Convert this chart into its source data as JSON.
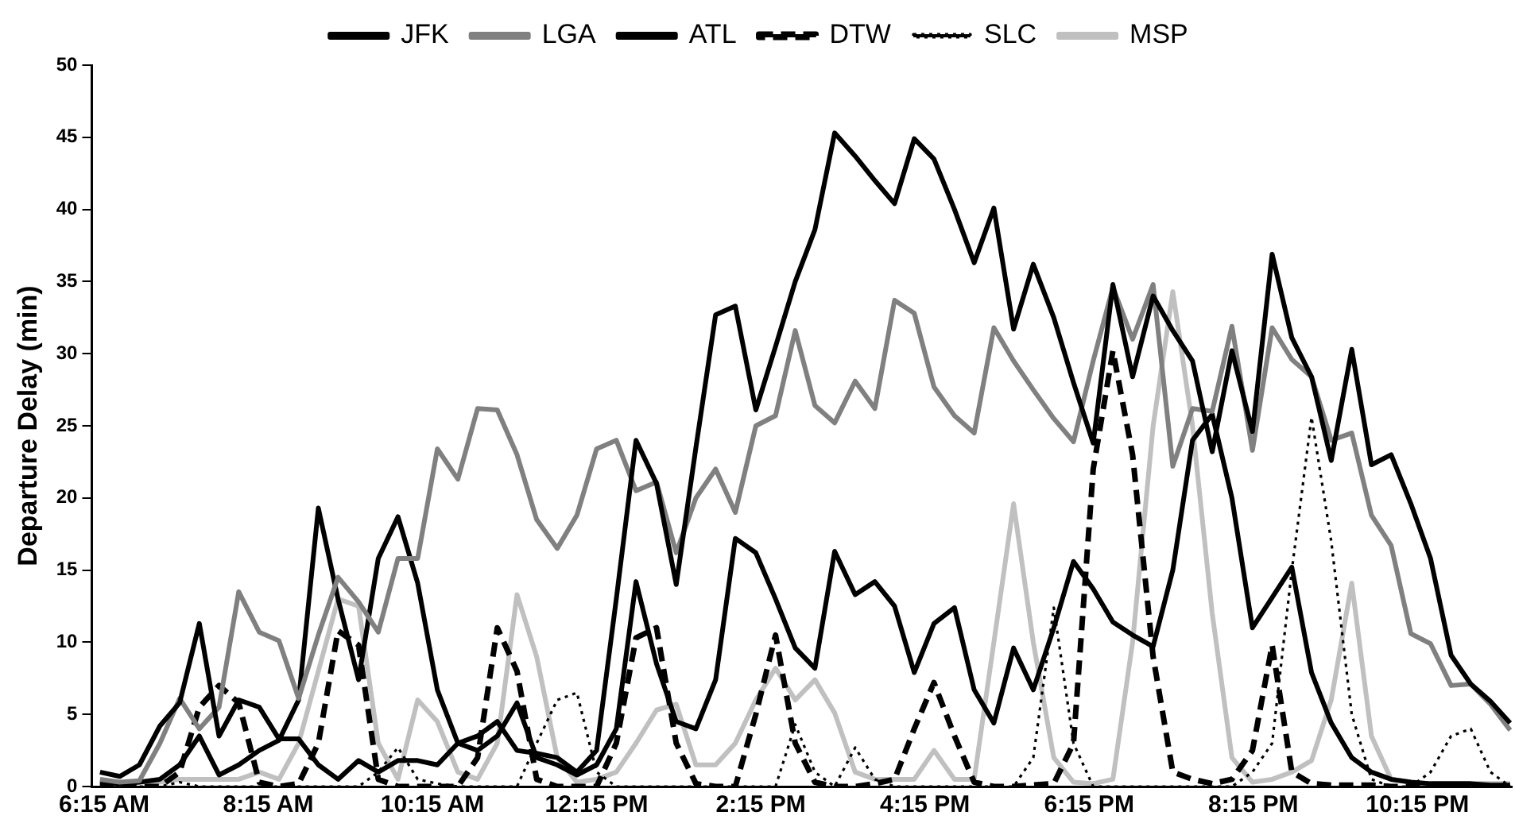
{
  "chart_data": {
    "type": "line",
    "ylabel": "Departure Delay (min)",
    "x": [
      6.2,
      6.44,
      6.68,
      6.93,
      7.17,
      7.41,
      7.65,
      7.89,
      8.14,
      8.38,
      8.62,
      8.86,
      9.1,
      9.35,
      9.59,
      9.83,
      10.07,
      10.31,
      10.56,
      10.8,
      11.04,
      11.28,
      11.52,
      11.77,
      12.01,
      12.25,
      12.49,
      12.73,
      12.98,
      13.22,
      13.46,
      13.7,
      13.94,
      14.19,
      14.43,
      14.67,
      14.91,
      15.15,
      15.4,
      15.64,
      15.88,
      16.12,
      16.36,
      16.61,
      16.85,
      17.09,
      17.33,
      17.57,
      17.82,
      18.06,
      18.3,
      18.54,
      18.78,
      19.03,
      19.27,
      19.51,
      19.75,
      19.99,
      20.24,
      20.48,
      20.72,
      20.96,
      21.2,
      21.45,
      21.69,
      21.93,
      22.17,
      22.41,
      22.66,
      22.9,
      23.14,
      23.38
    ],
    "xlim": [
      6.1,
      23.4
    ],
    "xticks": [
      {
        "value": 6.25,
        "label": "6:15 AM"
      },
      {
        "value": 8.25,
        "label": "8:15 AM"
      },
      {
        "value": 10.25,
        "label": "10:15 AM"
      },
      {
        "value": 12.25,
        "label": "12:15 PM"
      },
      {
        "value": 14.25,
        "label": "2:15 PM"
      },
      {
        "value": 16.25,
        "label": "4:15 PM"
      },
      {
        "value": 18.25,
        "label": "6:15 PM"
      },
      {
        "value": 20.25,
        "label": "8:15 PM"
      },
      {
        "value": 22.25,
        "label": "10:15 PM"
      }
    ],
    "ylim": [
      0,
      50
    ],
    "yticks": [
      0,
      5,
      10,
      15,
      20,
      25,
      30,
      35,
      40,
      45,
      50
    ],
    "grid": false,
    "legend": "top",
    "marker": "none",
    "series": [
      {
        "name": "JFK",
        "color": "#000000",
        "line_style": "solid",
        "values": [
          1.0,
          0.7,
          1.5,
          4.2,
          5.8,
          11.3,
          3.5,
          6.0,
          5.5,
          3.3,
          3.3,
          1.5,
          0.5,
          1.8,
          1.0,
          1.8,
          1.8,
          1.5,
          3.0,
          3.5,
          4.5,
          2.5,
          2.3,
          2.0,
          1.0,
          2.5,
          13,
          24,
          21,
          14,
          23.5,
          32.7,
          33.3,
          26.1,
          30.5,
          35,
          38.6,
          45.3,
          43.7,
          42.0,
          40.4,
          44.9,
          43.5,
          40,
          36.3,
          40.1,
          31.7,
          36.2,
          32.5,
          28,
          23.8,
          34.8,
          28.4,
          34,
          31.6,
          29.5,
          23.2,
          30.2,
          24.6,
          36.9,
          31.1,
          28.4,
          22.6,
          30.3,
          22.3,
          23,
          19.6,
          15.8,
          9.1,
          7.1,
          5.9,
          4.4
        ]
      },
      {
        "name": "LGA",
        "color": "#808080",
        "line_style": "solid",
        "values": [
          0.5,
          0.3,
          0.4,
          3.0,
          6.1,
          4,
          5.5,
          13.5,
          10.7,
          10.1,
          6.1,
          10.5,
          14.5,
          12.8,
          10.7,
          15.8,
          15.8,
          23.4,
          21.3,
          26.2,
          26.1,
          23,
          18.5,
          16.5,
          18.8,
          23.4,
          24,
          20.5,
          21.1,
          16.2,
          20,
          22,
          19,
          25,
          25.7,
          31.6,
          26.4,
          25.2,
          28.1,
          26.2,
          33.7,
          32.8,
          27.7,
          25.7,
          24.5,
          31.8,
          29.5,
          27.5,
          25.5,
          23.9,
          29.5,
          34.6,
          31,
          34.8,
          22.2,
          26.2,
          26,
          31.9,
          23.3,
          31.8,
          29.6,
          28.4,
          24,
          24.5,
          18.8,
          16.7,
          10.6,
          9.9,
          7,
          7.1,
          5.7,
          3.9
        ]
      },
      {
        "name": "ATL",
        "color": "#000000",
        "line_style": "solid",
        "values": [
          0.3,
          0.2,
          0.3,
          0.5,
          1.5,
          3.5,
          0.8,
          1.5,
          2.5,
          3.2,
          6,
          19.3,
          13,
          7.4,
          15.8,
          18.7,
          14.1,
          6.7,
          3,
          2.5,
          3.5,
          5.8,
          2,
          1.5,
          0.8,
          1.5,
          4,
          14.2,
          8.5,
          4.5,
          4,
          7.4,
          17.2,
          16.2,
          13,
          9.6,
          8.2,
          16.3,
          13.3,
          14.2,
          12.5,
          7.9,
          11.3,
          12.4,
          6.7,
          4.4,
          9.6,
          6.7,
          11,
          15.6,
          13.7,
          11.4,
          10.5,
          9.7,
          15,
          24,
          25.8,
          20,
          11,
          13.1,
          15.2,
          7.9,
          4.4,
          2,
          1,
          0.5,
          0.3,
          0.2,
          0.2,
          0.2,
          0.1,
          0.1
        ]
      },
      {
        "name": "DTW",
        "color": "#000000",
        "line_style": "dashed",
        "values": [
          0,
          0,
          0,
          0,
          1,
          5.5,
          7,
          5.8,
          0.3,
          0,
          0.2,
          3,
          10.8,
          9.8,
          0.5,
          0,
          0,
          0,
          0,
          2,
          11,
          8,
          0.5,
          0,
          0,
          0,
          3,
          10.3,
          11,
          3,
          0.2,
          0,
          0,
          5,
          10.5,
          3,
          0.3,
          0,
          0,
          0.2,
          0.5,
          4,
          7.2,
          3.5,
          0.3,
          0,
          0,
          0.1,
          0.2,
          3,
          22,
          30.2,
          23,
          9,
          1,
          0.5,
          0.2,
          0.5,
          2.5,
          9.8,
          1,
          0.2,
          0.1,
          0.1,
          0.1,
          0,
          0,
          0,
          0,
          0,
          0,
          0
        ]
      },
      {
        "name": "SLC",
        "color": "#000000",
        "line_style": "dotted",
        "values": [
          0,
          0,
          0,
          0,
          0.3,
          0,
          0,
          0,
          0,
          0,
          0,
          0,
          0,
          0,
          1,
          2.7,
          0.5,
          0.2,
          0,
          0,
          0,
          0,
          3,
          6,
          6.5,
          1,
          0,
          0,
          0,
          0,
          0,
          0,
          0,
          0,
          0,
          4.3,
          1,
          0,
          2.7,
          0.5,
          0,
          0,
          0,
          0,
          0,
          0,
          0,
          2,
          12.4,
          3,
          0,
          0,
          0,
          0,
          0,
          0,
          0,
          0,
          1,
          3,
          15,
          25.6,
          17,
          5,
          0.5,
          0,
          0,
          1,
          3.5,
          4,
          1,
          0
        ]
      },
      {
        "name": "MSP",
        "color": "#c0c0c0",
        "line_style": "solid",
        "values": [
          0.2,
          0.2,
          0.3,
          0.3,
          0.5,
          0.5,
          0.5,
          0.5,
          1,
          0.5,
          3,
          8,
          13,
          12.5,
          3,
          0.5,
          6,
          4.5,
          1,
          0.5,
          3,
          13.3,
          9,
          2,
          0.3,
          0.5,
          1,
          3,
          5.3,
          5.7,
          1.5,
          1.5,
          3,
          6,
          8.2,
          6,
          7.4,
          5.1,
          1,
          0.5,
          0.5,
          0.5,
          2.5,
          0.5,
          0.5,
          10,
          19.6,
          10,
          2,
          0.3,
          0.2,
          0.5,
          10,
          25,
          34.3,
          25,
          12,
          2,
          0.3,
          0.5,
          1,
          1.8,
          6,
          14.1,
          3.5,
          0.5,
          0.3,
          0.2,
          null,
          0.2,
          0.2,
          0.2
        ]
      }
    ]
  }
}
